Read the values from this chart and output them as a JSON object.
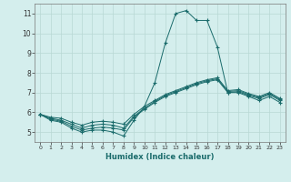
{
  "xlabel": "Humidex (Indice chaleur)",
  "ylabel": "",
  "background_color": "#d4eeed",
  "grid_color": "#b8d8d4",
  "line_color": "#1a6b6b",
  "marker": "+",
  "markersize": 3,
  "xlim": [
    -0.5,
    23.5
  ],
  "ylim": [
    4.5,
    11.5
  ],
  "yticks": [
    5,
    6,
    7,
    8,
    9,
    10,
    11
  ],
  "xticks": [
    0,
    1,
    2,
    3,
    4,
    5,
    6,
    7,
    8,
    9,
    10,
    11,
    12,
    13,
    14,
    15,
    16,
    17,
    18,
    19,
    20,
    21,
    22,
    23
  ],
  "lines": [
    [
      5.9,
      5.6,
      5.5,
      5.2,
      5.0,
      5.1,
      5.1,
      5.0,
      4.8,
      5.6,
      6.3,
      7.5,
      9.5,
      11.0,
      11.15,
      10.65,
      10.65,
      9.3,
      7.0,
      7.0,
      6.8,
      6.6,
      6.8,
      6.5
    ],
    [
      5.9,
      5.65,
      5.55,
      5.3,
      5.1,
      5.2,
      5.25,
      5.2,
      5.1,
      5.75,
      6.15,
      6.5,
      6.8,
      7.0,
      7.2,
      7.4,
      7.55,
      7.65,
      7.0,
      7.05,
      6.85,
      6.7,
      6.9,
      6.6
    ],
    [
      5.9,
      5.7,
      5.6,
      5.4,
      5.2,
      5.35,
      5.4,
      5.35,
      5.2,
      5.8,
      6.2,
      6.55,
      6.85,
      7.05,
      7.25,
      7.45,
      7.6,
      7.7,
      7.05,
      7.1,
      6.9,
      6.75,
      6.95,
      6.65
    ],
    [
      5.9,
      5.75,
      5.7,
      5.5,
      5.35,
      5.5,
      5.55,
      5.5,
      5.4,
      5.9,
      6.3,
      6.6,
      6.9,
      7.1,
      7.3,
      7.5,
      7.65,
      7.75,
      7.1,
      7.15,
      6.95,
      6.8,
      7.0,
      6.7
    ]
  ]
}
